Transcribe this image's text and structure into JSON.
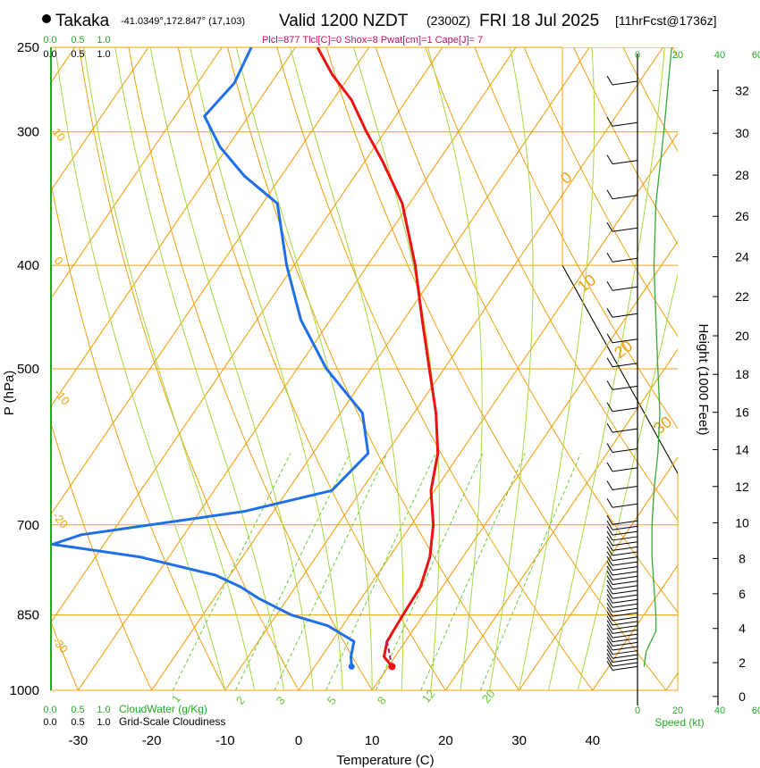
{
  "header": {
    "location": "Takaka",
    "coords": "-41.0349°,172.847° (17,103)",
    "valid": "Valid 1200 NZDT",
    "utc": "(2300Z)",
    "date": "FRI 18 Jul 2025",
    "run": "[11hrFcst@1736z]",
    "params": "Plcl=877 Tlcl[C]=0 Shox=8 Pwat[cm]=1 Cape[J]= 7"
  },
  "colors": {
    "temperature": "#ee1111",
    "dewpoint": "#1f6fe8",
    "isotherm": "#f0a010",
    "dry_adiabat": "#f0a010",
    "moist_adiabat": "#a8d840",
    "mixing_ratio": "#66cc33",
    "wind_speed": "#33aa33",
    "params_text": "#bb1166",
    "green_label": "#22aa22"
  },
  "chart_data": {
    "type": "line",
    "title": "Skew-T log-P sounding",
    "xlabel": "Temperature (C)",
    "ylabel": "P (hPa)",
    "x_ticks": [
      -30,
      -20,
      -10,
      0,
      10,
      20,
      30,
      40
    ],
    "p_ticks": [
      250,
      300,
      400,
      500,
      700,
      850,
      1000
    ],
    "p_range": [
      1000,
      250
    ],
    "height_label": "Height (1000 Feet)",
    "height_ticks": [
      0,
      2,
      4,
      6,
      8,
      10,
      12,
      14,
      16,
      18,
      20,
      22,
      24,
      26,
      28,
      30,
      32
    ],
    "speed_label": "Speed (kt)",
    "speed_ticks": [
      0,
      20,
      40,
      60
    ],
    "top_cloud_ticks": [
      "0.0",
      "0.5",
      "1.0"
    ],
    "bottom_cloud_ticks": [
      "0.0",
      "0.5",
      "1.0"
    ],
    "cloud_water_label": "CloudWater (g/Kg)",
    "cloudiness_label": "Grid-Scale Cloudiness",
    "mixing_ratio_labels": [
      "1",
      "2",
      "3",
      "5",
      "8",
      "12",
      "20"
    ],
    "isotherm_labels": [
      "10",
      "0",
      "-10",
      "-20",
      "-30"
    ],
    "dry_adiabat_labels": [
      "0",
      "10",
      "20",
      "30"
    ],
    "temperature": [
      {
        "p": 950,
        "t": 10.5
      },
      {
        "p": 930,
        "t": 8.5
      },
      {
        "p": 900,
        "t": 7.5
      },
      {
        "p": 850,
        "t": 7.2
      },
      {
        "p": 800,
        "t": 7.0
      },
      {
        "p": 750,
        "t": 5.5
      },
      {
        "p": 700,
        "t": 3.0
      },
      {
        "p": 650,
        "t": -0.5
      },
      {
        "p": 600,
        "t": -3.0
      },
      {
        "p": 550,
        "t": -7.0
      },
      {
        "p": 500,
        "t": -12.0
      },
      {
        "p": 450,
        "t": -17.5
      },
      {
        "p": 400,
        "t": -23.5
      },
      {
        "p": 350,
        "t": -31.0
      },
      {
        "p": 320,
        "t": -37.5
      },
      {
        "p": 300,
        "t": -42.5
      },
      {
        "p": 280,
        "t": -47.5
      },
      {
        "p": 265,
        "t": -52.5
      },
      {
        "p": 250,
        "t": -57.0
      }
    ],
    "dewpoint": [
      {
        "p": 950,
        "t": 5.0
      },
      {
        "p": 930,
        "t": 4.0
      },
      {
        "p": 900,
        "t": 3.0
      },
      {
        "p": 870,
        "t": -2.0
      },
      {
        "p": 850,
        "t": -8.0
      },
      {
        "p": 820,
        "t": -14.0
      },
      {
        "p": 800,
        "t": -17.5
      },
      {
        "p": 780,
        "t": -22.0
      },
      {
        "p": 750,
        "t": -34.0
      },
      {
        "p": 730,
        "t": -47.0
      },
      {
        "p": 715,
        "t": -44.0
      },
      {
        "p": 680,
        "t": -24.0
      },
      {
        "p": 650,
        "t": -14.0
      },
      {
        "p": 600,
        "t": -12.5
      },
      {
        "p": 550,
        "t": -17.0
      },
      {
        "p": 500,
        "t": -26.0
      },
      {
        "p": 450,
        "t": -34.0
      },
      {
        "p": 400,
        "t": -41.0
      },
      {
        "p": 350,
        "t": -48.0
      },
      {
        "p": 330,
        "t": -55.0
      },
      {
        "p": 310,
        "t": -61.0
      },
      {
        "p": 290,
        "t": -66.0
      },
      {
        "p": 270,
        "t": -65.0
      },
      {
        "p": 250,
        "t": -66.0
      }
    ],
    "wind_speed_kt": [
      {
        "p": 950,
        "v": 2
      },
      {
        "p": 920,
        "v": 3
      },
      {
        "p": 880,
        "v": 8
      },
      {
        "p": 850,
        "v": 8
      },
      {
        "p": 800,
        "v": 7
      },
      {
        "p": 750,
        "v": 6
      },
      {
        "p": 700,
        "v": 6
      },
      {
        "p": 650,
        "v": 7
      },
      {
        "p": 600,
        "v": 9
      },
      {
        "p": 550,
        "v": 10
      },
      {
        "p": 500,
        "v": 9
      },
      {
        "p": 450,
        "v": 8
      },
      {
        "p": 400,
        "v": 7
      },
      {
        "p": 350,
        "v": 8
      },
      {
        "p": 300,
        "v": 12
      },
      {
        "p": 250,
        "v": 16
      }
    ]
  }
}
